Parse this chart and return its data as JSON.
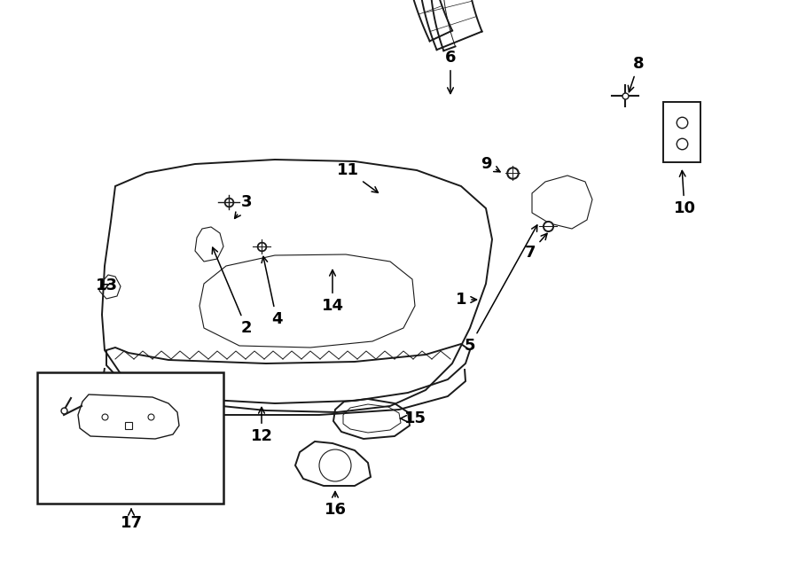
{
  "bg_color": "#ffffff",
  "line_color": "#1a1a1a",
  "figsize": [
    9.0,
    6.61
  ],
  "dpi": 100,
  "label_fontsize": 13,
  "arrow_lw": 1.1,
  "main_lw": 1.4,
  "thin_lw": 0.8
}
